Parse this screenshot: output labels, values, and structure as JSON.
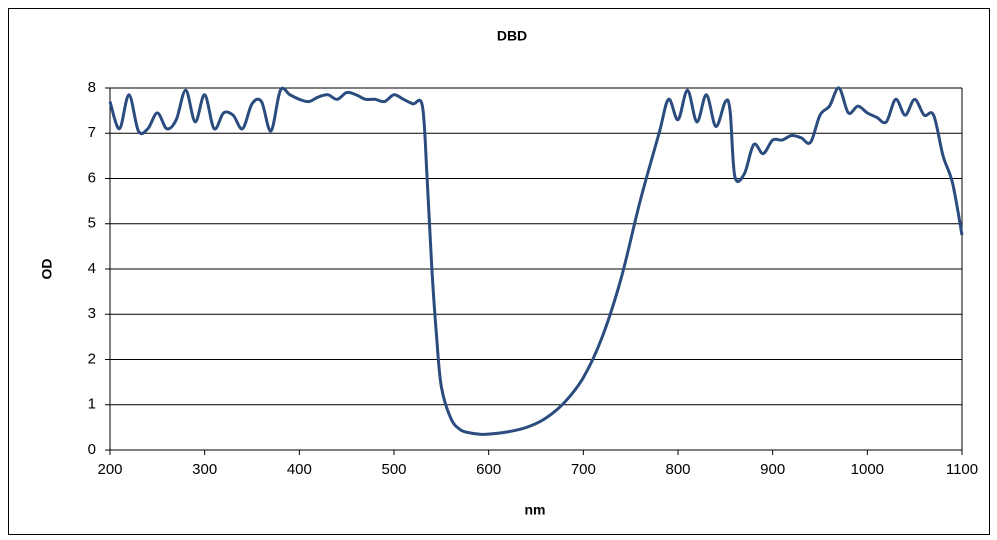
{
  "chart_data": {
    "type": "line",
    "title": "DBD",
    "x_label": "nm",
    "y_label": "OD",
    "x": [
      200,
      210,
      220,
      230,
      240,
      250,
      260,
      270,
      280,
      290,
      300,
      310,
      320,
      330,
      340,
      350,
      360,
      370,
      380,
      390,
      400,
      410,
      420,
      430,
      440,
      450,
      460,
      470,
      480,
      490,
      500,
      510,
      520,
      530,
      535,
      540,
      545,
      550,
      560,
      570,
      580,
      590,
      600,
      620,
      640,
      660,
      680,
      700,
      720,
      740,
      760,
      780,
      790,
      800,
      810,
      820,
      830,
      840,
      850,
      855,
      860,
      870,
      880,
      890,
      900,
      910,
      920,
      930,
      940,
      950,
      960,
      970,
      980,
      990,
      1000,
      1010,
      1020,
      1030,
      1040,
      1050,
      1060,
      1070,
      1080,
      1090,
      1100
    ],
    "series": [
      {
        "name": "DBD",
        "color": "#2b4c7e",
        "values": [
          7.7,
          7.1,
          7.85,
          7.05,
          7.1,
          7.45,
          7.1,
          7.3,
          7.95,
          7.25,
          7.85,
          7.1,
          7.45,
          7.4,
          7.1,
          7.65,
          7.7,
          7.05,
          7.95,
          7.85,
          7.75,
          7.7,
          7.8,
          7.85,
          7.75,
          7.9,
          7.85,
          7.75,
          7.75,
          7.7,
          7.85,
          7.75,
          7.65,
          7.6,
          6.0,
          4.0,
          2.5,
          1.4,
          0.7,
          0.45,
          0.38,
          0.35,
          0.35,
          0.4,
          0.5,
          0.7,
          1.05,
          1.6,
          2.5,
          3.8,
          5.5,
          7.0,
          7.75,
          7.3,
          7.95,
          7.25,
          7.85,
          7.15,
          7.7,
          7.5,
          6.05,
          6.1,
          6.75,
          6.55,
          6.85,
          6.85,
          6.95,
          6.9,
          6.8,
          7.4,
          7.6,
          8.0,
          7.45,
          7.6,
          7.45,
          7.35,
          7.25,
          7.75,
          7.4,
          7.75,
          7.4,
          7.4,
          6.5,
          5.9,
          4.75
        ]
      }
    ],
    "xlim": [
      200,
      1100
    ],
    "xticks": [
      200,
      300,
      400,
      500,
      600,
      700,
      800,
      900,
      1000,
      1100
    ],
    "ylim": [
      0,
      8
    ],
    "yticks": [
      0,
      1,
      2,
      3,
      4,
      5,
      6,
      7,
      8
    ],
    "grid": true
  }
}
